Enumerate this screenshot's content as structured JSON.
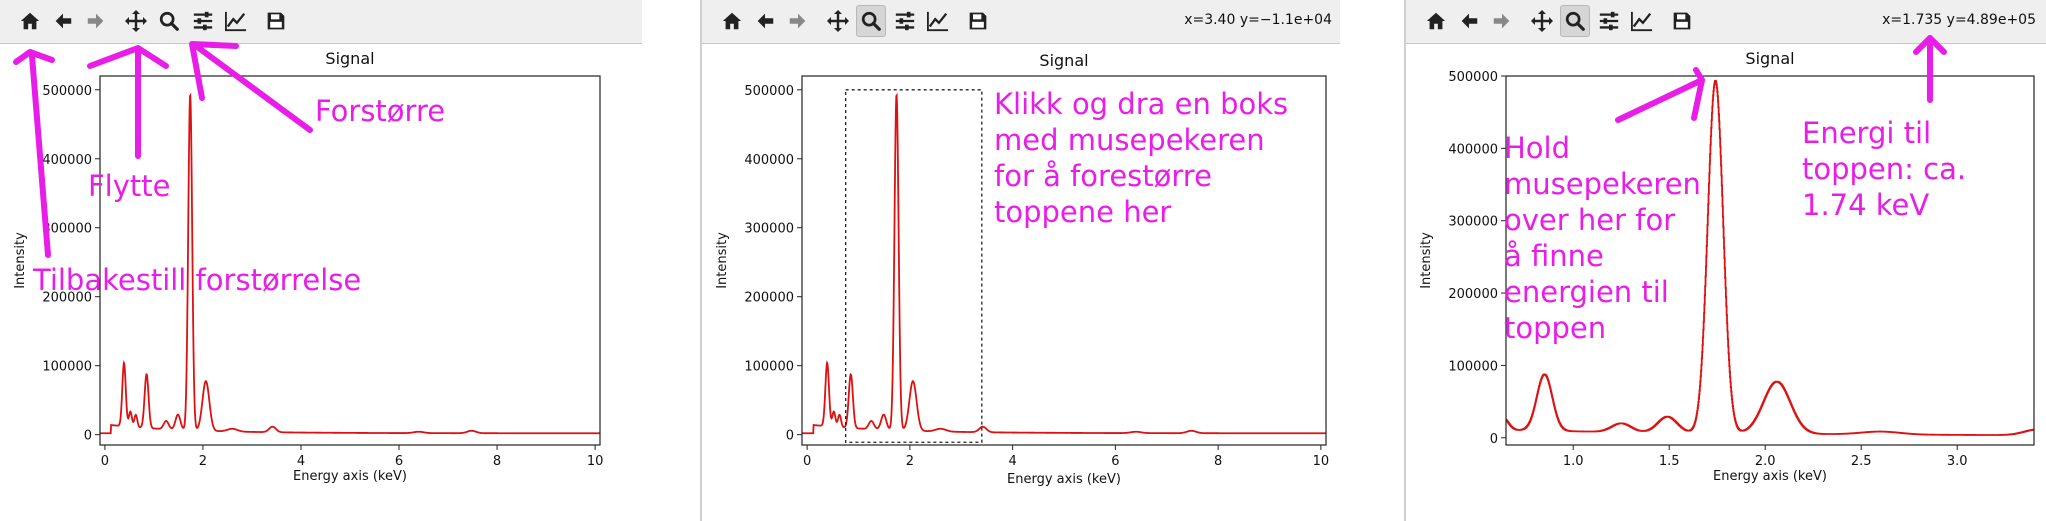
{
  "panels": [
    {
      "toolbar": {
        "icons": [
          "home-icon",
          "back-arrow-icon",
          "forward-arrow-icon",
          "pan-icon",
          "zoom-icon",
          "configure-icon",
          "edit-axis-icon",
          "save-icon"
        ],
        "active": "",
        "coords": ""
      },
      "annotations": [
        {
          "text": "Forstørre"
        },
        {
          "text": "Flytte"
        },
        {
          "text": "Tilbakestill forstørrelse"
        }
      ]
    },
    {
      "toolbar": {
        "icons": [
          "home-icon",
          "back-arrow-icon",
          "forward-arrow-icon",
          "pan-icon",
          "zoom-icon",
          "configure-icon",
          "edit-axis-icon",
          "save-icon"
        ],
        "active": "zoom-icon",
        "coords": "x=3.40 y=−1.1e+04"
      },
      "annotations": [
        {
          "text": "Klikk og dra en boks\nmed musepekeren\nfor å forestørre\ntoppene her"
        }
      ]
    },
    {
      "toolbar": {
        "icons": [
          "home-icon",
          "back-arrow-icon",
          "forward-arrow-icon",
          "pan-icon",
          "zoom-icon",
          "configure-icon",
          "edit-axis-icon",
          "save-icon"
        ],
        "active": "zoom-icon",
        "coords": "x=1.735 y=4.89e+05"
      },
      "annotations": [
        {
          "text": "Hold\nmusepekeren\nover her for\nå finne\nenergien til\ntoppen"
        },
        {
          "text": "Energi til\ntoppen: ca.\n1.74 keV"
        }
      ]
    }
  ],
  "chart_data": [
    {
      "type": "line",
      "title": "Signal",
      "xlabel": "Energy axis (keV)",
      "ylabel": "Intensity",
      "xlim": [
        -0.1,
        10.1
      ],
      "ylim": [
        -15000,
        520000
      ],
      "xticks": [
        0,
        2,
        4,
        6,
        8,
        10
      ],
      "xtick_labels": [
        "0",
        "2",
        "4",
        "6",
        "8",
        "10"
      ],
      "yticks": [
        0,
        100000,
        200000,
        300000,
        400000,
        500000
      ],
      "ytick_labels": [
        "0",
        "100000",
        "200000",
        "300000",
        "400000",
        "500000"
      ],
      "color": "#dd1111",
      "series": [
        {
          "baseline": 2000,
          "tail": [
            0.12,
            12000,
            1.6
          ],
          "peaks": [
            [
              0.39,
              92000,
              0.035
            ],
            [
              0.52,
              22000,
              0.03
            ],
            [
              0.63,
              18000,
              0.03
            ],
            [
              0.85,
              78000,
              0.04
            ],
            [
              1.25,
              12000,
              0.05
            ],
            [
              1.49,
              22000,
              0.05
            ],
            [
              1.74,
              487000,
              0.04
            ],
            [
              2.06,
              72000,
              0.07
            ],
            [
              2.6,
              4000,
              0.1
            ],
            [
              3.42,
              8000,
              0.07
            ],
            [
              6.4,
              2000,
              0.1
            ],
            [
              7.48,
              3500,
              0.09
            ]
          ]
        }
      ]
    },
    {
      "type": "line",
      "title": "Signal",
      "xlabel": "Energy axis (keV)",
      "ylabel": "Intensity",
      "xlim": [
        -0.1,
        10.1
      ],
      "ylim": [
        -15000,
        520000
      ],
      "xticks": [
        0,
        2,
        4,
        6,
        8,
        10
      ],
      "xtick_labels": [
        "0",
        "2",
        "4",
        "6",
        "8",
        "10"
      ],
      "yticks": [
        0,
        100000,
        200000,
        300000,
        400000,
        500000
      ],
      "ytick_labels": [
        "0",
        "100000",
        "200000",
        "300000",
        "400000",
        "500000"
      ],
      "color": "#dd1111",
      "zoom_box": {
        "x0": 0.75,
        "x1": 3.4,
        "y0": -11000,
        "y1": 500000
      },
      "series": [
        {
          "baseline": 2000,
          "tail": [
            0.12,
            12000,
            1.6
          ],
          "peaks": [
            [
              0.39,
              92000,
              0.035
            ],
            [
              0.52,
              22000,
              0.03
            ],
            [
              0.63,
              18000,
              0.03
            ],
            [
              0.85,
              78000,
              0.04
            ],
            [
              1.25,
              12000,
              0.05
            ],
            [
              1.49,
              22000,
              0.05
            ],
            [
              1.74,
              487000,
              0.04
            ],
            [
              2.06,
              72000,
              0.07
            ],
            [
              2.6,
              4000,
              0.1
            ],
            [
              3.42,
              8000,
              0.07
            ],
            [
              6.4,
              2000,
              0.1
            ],
            [
              7.48,
              3500,
              0.09
            ]
          ]
        }
      ]
    },
    {
      "type": "line",
      "title": "Signal",
      "xlabel": "Energy axis (keV)",
      "ylabel": "Intensity",
      "xlim": [
        0.65,
        3.4
      ],
      "ylim": [
        -10000,
        500000
      ],
      "xticks": [
        1.0,
        1.5,
        2.0,
        2.5,
        3.0
      ],
      "xtick_labels": [
        "1.0",
        "1.5",
        "2.0",
        "2.5",
        "3.0"
      ],
      "yticks": [
        0,
        100000,
        200000,
        300000,
        400000,
        500000
      ],
      "ytick_labels": [
        "0",
        "100000",
        "200000",
        "300000",
        "400000",
        "500000"
      ],
      "color": "#dd1111",
      "step": true,
      "series": [
        {
          "baseline": 2000,
          "tail": [
            0.12,
            12000,
            1.6
          ],
          "peaks": [
            [
              0.52,
              22000,
              0.03
            ],
            [
              0.63,
              18000,
              0.03
            ],
            [
              0.85,
              78000,
              0.04
            ],
            [
              1.25,
              12000,
              0.05
            ],
            [
              1.49,
              22000,
              0.05
            ],
            [
              1.74,
              487000,
              0.04
            ],
            [
              2.06,
              72000,
              0.07
            ],
            [
              2.6,
              4000,
              0.1
            ],
            [
              3.42,
              8000,
              0.07
            ]
          ]
        }
      ]
    }
  ]
}
